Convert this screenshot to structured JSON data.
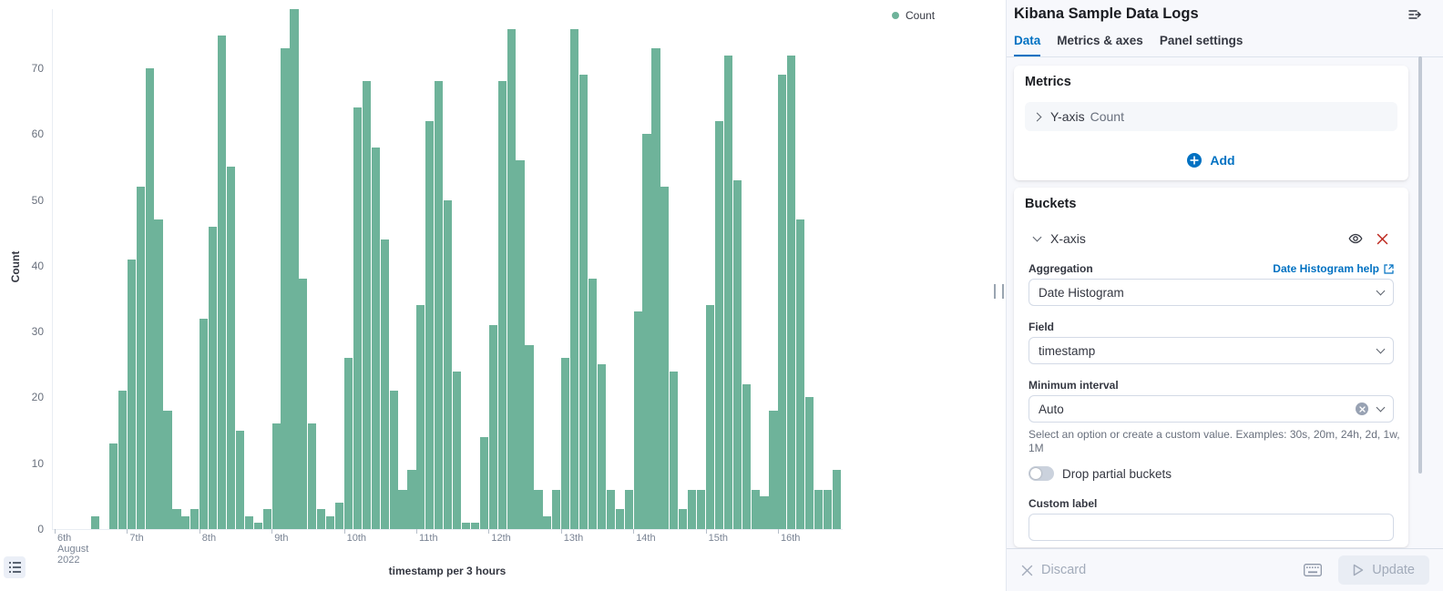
{
  "chart": {
    "legend": {
      "label": "Count",
      "color": "#6EB39A"
    },
    "chart_data": {
      "type": "bar",
      "title": "",
      "xlabel": "timestamp per 3 hours",
      "ylabel": "Count",
      "ylim": [
        0,
        79
      ],
      "yticks": [
        0,
        10,
        20,
        30,
        40,
        50,
        60,
        70
      ],
      "xticks": [
        "6th August 2022",
        "7th",
        "8th",
        "9th",
        "10th",
        "11th",
        "12th",
        "13th",
        "14th",
        "15th",
        "16th"
      ],
      "bucket_interval_hours": 3,
      "first_bucket": "2022-08-06 12:00",
      "series_name": "Count",
      "values": [
        2,
        0,
        13,
        21,
        41,
        52,
        70,
        47,
        18,
        3,
        2,
        3,
        32,
        46,
        75,
        55,
        15,
        2,
        1,
        3,
        16,
        73,
        79,
        38,
        16,
        3,
        2,
        4,
        26,
        64,
        68,
        58,
        44,
        21,
        6,
        9,
        34,
        62,
        68,
        50,
        24,
        1,
        1,
        14,
        31,
        68,
        76,
        56,
        28,
        6,
        2,
        6,
        26,
        76,
        69,
        38,
        25,
        6,
        3,
        6,
        33,
        60,
        73,
        52,
        24,
        3,
        6,
        6,
        34,
        62,
        72,
        53,
        22,
        6,
        5,
        18,
        69,
        72,
        47,
        20,
        6,
        6,
        9
      ],
      "bar_color": "#6EB39A",
      "grid": false,
      "legend_position": "right-top"
    }
  },
  "panel": {
    "title": "Kibana Sample Data Logs",
    "tabs": [
      {
        "label": "Data",
        "active": true
      },
      {
        "label": "Metrics & axes",
        "active": false
      },
      {
        "label": "Panel settings",
        "active": false
      }
    ],
    "metrics": {
      "heading": "Metrics",
      "row_label": "Y-axis",
      "row_value": "Count",
      "add_label": "Add"
    },
    "buckets": {
      "heading": "Buckets",
      "row_label": "X-axis",
      "aggregation_label": "Aggregation",
      "aggregation_help_link": "Date Histogram help",
      "aggregation_value": "Date Histogram",
      "field_label": "Field",
      "field_value": "timestamp",
      "min_interval_label": "Minimum interval",
      "min_interval_value": "Auto",
      "min_interval_help": "Select an option or create a custom value. Examples: 30s, 20m, 24h, 2d, 1w, 1M",
      "drop_partial_label": "Drop partial buckets",
      "drop_partial_on": false,
      "custom_label_label": "Custom label",
      "custom_label_value": "",
      "custom_label_placeholder": ""
    },
    "footer": {
      "discard_label": "Discard",
      "update_label": "Update"
    }
  }
}
